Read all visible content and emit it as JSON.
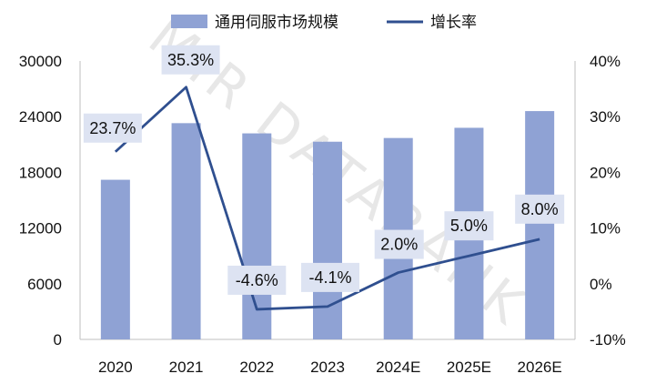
{
  "watermark": "MIR DATABANK",
  "colors": {
    "bar": "#8fa2d4",
    "line": "#2f4f8f",
    "axis": "#bfbfbf",
    "labelBox": "#dde3f2"
  },
  "legend": {
    "bar_label": "通用伺服市场规模",
    "line_label": "增长率"
  },
  "chart_data": {
    "type": "bar",
    "categories": [
      "2020",
      "2021",
      "2022",
      "2023",
      "2024E",
      "2025E",
      "2026E"
    ],
    "series": [
      {
        "name": "通用伺服市场规模",
        "type": "bar",
        "axis": "left",
        "values": [
          17200,
          23300,
          22200,
          21300,
          21700,
          22800,
          24600
        ]
      },
      {
        "name": "增长率",
        "type": "line",
        "axis": "right",
        "values": [
          23.7,
          35.3,
          -4.6,
          -4.1,
          2.0,
          5.0,
          8.0
        ],
        "labels": [
          "23.7%",
          "35.3%",
          "-4.6%",
          "-4.1%",
          "2.0%",
          "5.0%",
          "8.0%"
        ]
      }
    ],
    "y_left": {
      "min": 0,
      "max": 30000,
      "ticks": [
        0,
        6000,
        12000,
        18000,
        24000,
        30000
      ],
      "tick_labels": [
        "0",
        "6000",
        "12000",
        "18000",
        "24000",
        "30000"
      ]
    },
    "y_right": {
      "min": -10,
      "max": 40,
      "ticks": [
        -10,
        0,
        10,
        20,
        30,
        40
      ],
      "tick_labels": [
        "-10%",
        "0%",
        "10%",
        "20%",
        "30%",
        "40%"
      ]
    },
    "grid": false,
    "legend_position": "top"
  }
}
